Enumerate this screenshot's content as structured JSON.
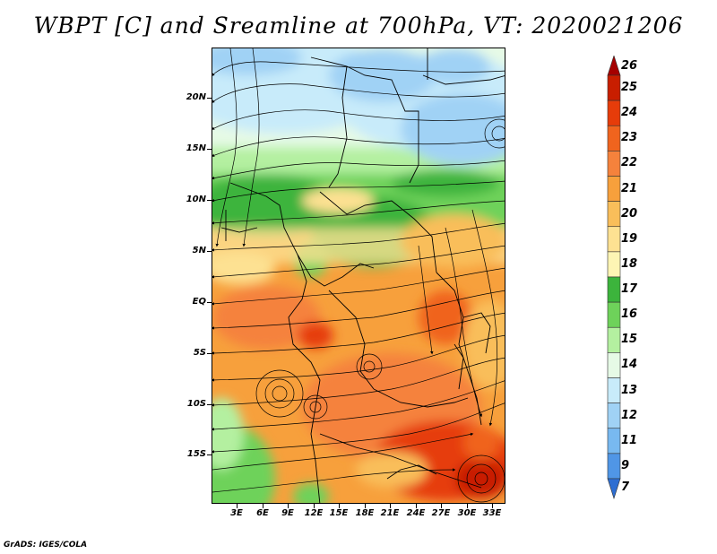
{
  "title": "WBPT [C] and Sreamline at 700hPa, VT: 2020021206",
  "footer": "GrADS: IGES/COLA",
  "latitude_labels": [
    "20N",
    "15N",
    "10N",
    "5N",
    "EQ",
    "5S",
    "10S",
    "15S"
  ],
  "longitude_labels": [
    "3E",
    "6E",
    "9E",
    "12E",
    "15E",
    "18E",
    "21E",
    "24E",
    "27E",
    "30E",
    "33E"
  ],
  "colorbar": {
    "variable": "WBPT [C]",
    "levels": [
      "26",
      "25",
      "24",
      "23",
      "22",
      "21",
      "20",
      "19",
      "18",
      "17",
      "16",
      "15",
      "14",
      "13",
      "12",
      "11",
      "9",
      "7"
    ],
    "colors": [
      "#a50000",
      "#c81e00",
      "#e63c0a",
      "#f0641e",
      "#f5823c",
      "#f7a03c",
      "#f9be5a",
      "#fde192",
      "#fdf5b4",
      "#3cb43c",
      "#6ed25a",
      "#b4f0a0",
      "#e6fae6",
      "#c8ebfa",
      "#a0d2f5",
      "#78b9f0",
      "#5096e6",
      "#2d6ed2"
    ],
    "extend": "both"
  },
  "map": {
    "lat_range": [
      "20S",
      "24N"
    ],
    "lon_range": [
      "0E",
      "35E"
    ],
    "level": "700hPa",
    "valid_time": "2020021206"
  }
}
